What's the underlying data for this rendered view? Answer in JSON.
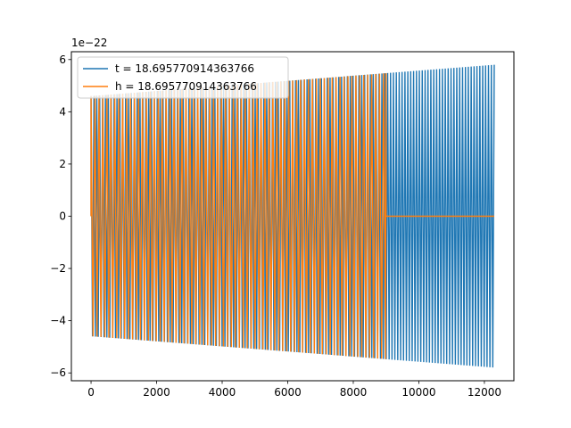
{
  "chart_data": {
    "type": "line",
    "title": "",
    "xlabel": "",
    "ylabel": "",
    "y_offset_label": "1e−22",
    "xlim": [
      -600,
      12900
    ],
    "ylim": [
      -6.3,
      6.3
    ],
    "x_ticks": [
      0,
      2000,
      4000,
      6000,
      8000,
      10000,
      12000
    ],
    "x_tick_labels": [
      "0",
      "2000",
      "4000",
      "6000",
      "8000",
      "10000",
      "12000"
    ],
    "y_ticks": [
      -6,
      -4,
      -2,
      0,
      2,
      4,
      6
    ],
    "y_tick_labels": [
      "−6",
      "−4",
      "−2",
      "0",
      "2",
      "4",
      "6"
    ],
    "grid": false,
    "legend_position": "upper-left",
    "series": [
      {
        "name": "t = 18.695770914363766",
        "color": "#1f77b4",
        "x_start": 0,
        "x_end": 12300,
        "amplitude_start": 4.6,
        "amplitude_end": 5.8,
        "cycles": 140,
        "zero_until": null
      },
      {
        "name": "h = 18.695770914363766",
        "color": "#ff7f0e",
        "x_start": 0,
        "x_end": 12300,
        "amplitude_start": 4.6,
        "amplitude_end": 5.8,
        "cycles": 102,
        "active_until": 9000
      }
    ]
  }
}
